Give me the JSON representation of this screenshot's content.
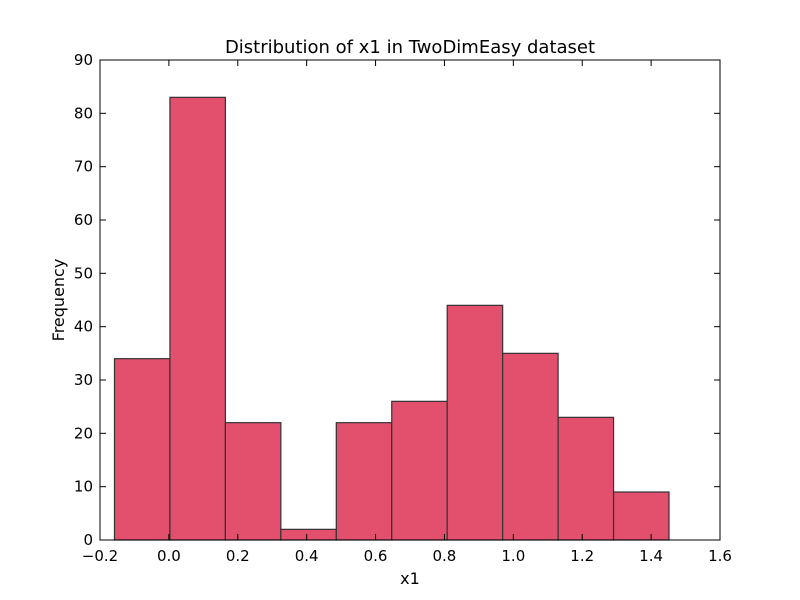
{
  "chart_data": {
    "type": "bar",
    "title": "Distribution of x1 in TwoDimEasy dataset",
    "xlabel": "x1",
    "ylabel": "Frequency",
    "xlim": [
      -0.2,
      1.6
    ],
    "ylim": [
      0,
      90
    ],
    "xticks": [
      -0.2,
      0.0,
      0.2,
      0.4,
      0.6,
      0.8,
      1.0,
      1.2,
      1.4,
      1.6
    ],
    "xtick_labels": [
      "−0.2",
      "0.0",
      "0.2",
      "0.4",
      "0.6",
      "0.8",
      "1.0",
      "1.2",
      "1.4",
      "1.6"
    ],
    "yticks": [
      0,
      10,
      20,
      30,
      40,
      50,
      60,
      70,
      80,
      90
    ],
    "ytick_labels": [
      "0",
      "10",
      "20",
      "30",
      "40",
      "50",
      "60",
      "70",
      "80",
      "90"
    ],
    "bin_edges": [
      -0.158,
      0.003,
      0.164,
      0.325,
      0.486,
      0.647,
      0.808,
      0.969,
      1.13,
      1.291,
      1.452
    ],
    "values": [
      34,
      83,
      22,
      2,
      22,
      26,
      44,
      35,
      23,
      9
    ],
    "grid": false,
    "bar_color": "#e2506e",
    "edge_color": "#333333"
  }
}
